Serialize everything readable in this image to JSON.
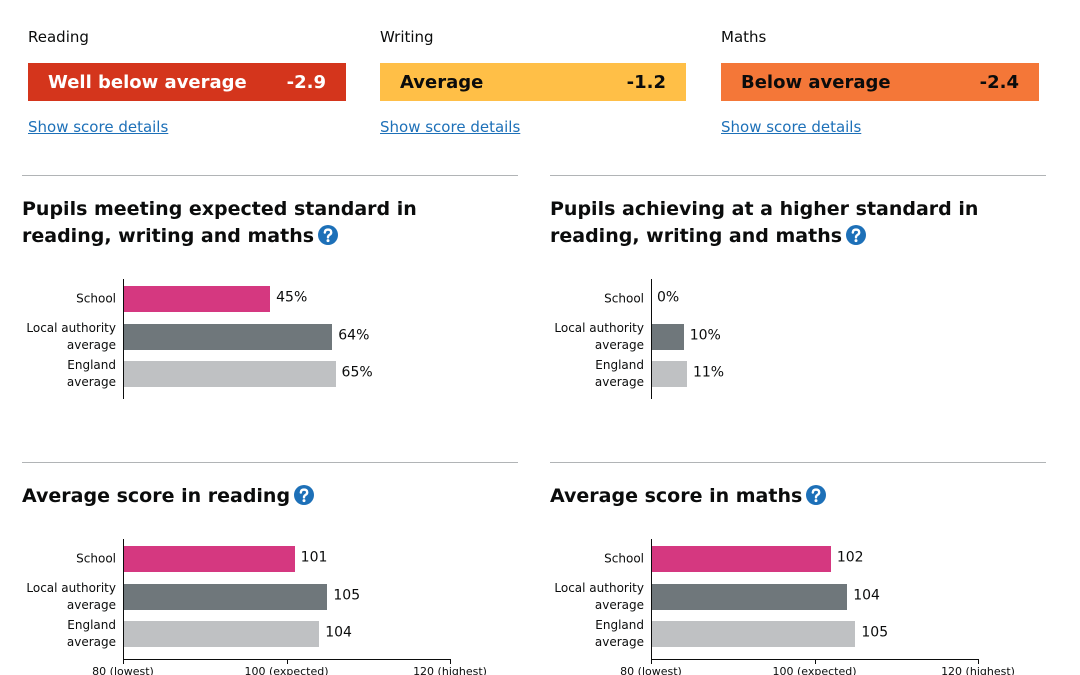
{
  "progress": [
    {
      "subject": "Reading",
      "band": "Well below average",
      "score": -2.9,
      "color": "#d4351c",
      "text_color": "#ffffff",
      "link": "Show score details"
    },
    {
      "subject": "Writing",
      "band": "Average",
      "score": -1.2,
      "color": "#ffbf47",
      "text_color": "#0b0c0c",
      "link": "Show score details"
    },
    {
      "subject": "Maths",
      "band": "Below average",
      "score": -2.4,
      "color": "#f47738",
      "text_color": "#0b0c0c",
      "link": "Show score details"
    }
  ],
  "chart_data": [
    {
      "type": "bar",
      "orientation": "horizontal",
      "title": "Pupils meeting expected standard in reading, writing and maths",
      "categories": [
        "School",
        "Local authority average",
        "England average"
      ],
      "values": [
        45,
        64,
        65
      ],
      "value_labels": [
        "45%",
        "64%",
        "65%"
      ],
      "colors": [
        "#d53880",
        "#6f777b",
        "#bfc1c3"
      ],
      "xlim": [
        0,
        100
      ]
    },
    {
      "type": "bar",
      "orientation": "horizontal",
      "title": "Pupils achieving at a higher standard in reading, writing and maths",
      "categories": [
        "School",
        "Local authority average",
        "England average"
      ],
      "values": [
        0,
        10,
        11
      ],
      "value_labels": [
        "0%",
        "10%",
        "11%"
      ],
      "colors": [
        "#d53880",
        "#6f777b",
        "#bfc1c3"
      ],
      "xlim": [
        0,
        100
      ]
    },
    {
      "type": "bar",
      "orientation": "horizontal",
      "title": "Average score in reading",
      "categories": [
        "School",
        "Local authority average",
        "England average"
      ],
      "values": [
        101,
        105,
        104
      ],
      "colors": [
        "#d53880",
        "#6f777b",
        "#bfc1c3"
      ],
      "xlim": [
        80,
        120
      ],
      "xticks": [
        {
          "value": 80,
          "label": "80 (lowest)"
        },
        {
          "value": 100,
          "label": "100 (expected)"
        },
        {
          "value": 120,
          "label": "120 (highest)"
        }
      ]
    },
    {
      "type": "bar",
      "orientation": "horizontal",
      "title": "Average score in maths",
      "categories": [
        "School",
        "Local authority average",
        "England average"
      ],
      "values": [
        102,
        104,
        105
      ],
      "colors": [
        "#d53880",
        "#6f777b",
        "#bfc1c3"
      ],
      "xlim": [
        80,
        120
      ],
      "xticks": [
        {
          "value": 80,
          "label": "80 (lowest)"
        },
        {
          "value": 100,
          "label": "100 (expected)"
        },
        {
          "value": 120,
          "label": "120 (highest)"
        }
      ]
    }
  ]
}
